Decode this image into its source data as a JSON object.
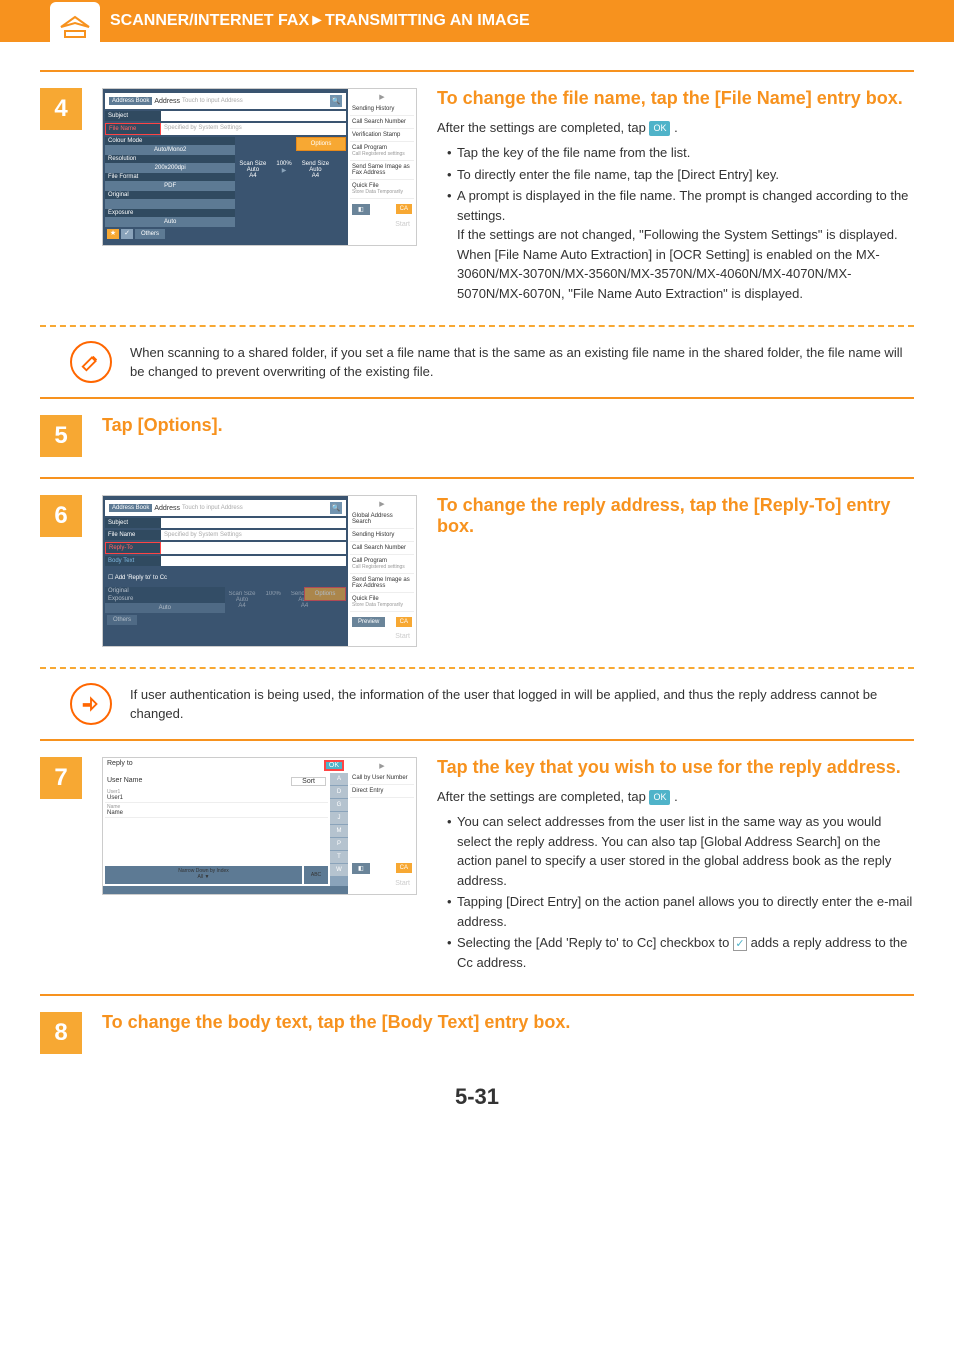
{
  "header": {
    "title": "SCANNER/INTERNET FAX►TRANSMITTING AN IMAGE"
  },
  "step4": {
    "num": "4",
    "title": "To change the file name, tap the [File Name] entry box.",
    "after": "After the settings are completed, tap ",
    "ok": "OK",
    "period": " .",
    "b1": "Tap the key of the file name from the list.",
    "b2": "To directly enter the file name, tap the [Direct Entry] key.",
    "b3_a": "A prompt is displayed in the file name. The prompt is changed according to the settings.",
    "b3_b": "If the settings are not changed, \"Following the System Settings\" is displayed.",
    "b3_c": "When [File Name Auto Extraction] in [OCR Setting] is enabled on the MX-3060N/MX-3070N/MX-3560N/MX-3570N/MX-4060N/MX-4070N/MX-5070N/MX-6070N, \"File Name Auto Extraction\" is displayed."
  },
  "note4": "When scanning to a shared folder, if you set a file name that is the same as an existing file name in the shared folder, the file name will be changed to prevent overwriting of the existing file.",
  "step5": {
    "num": "5",
    "title": "Tap [Options]."
  },
  "step6": {
    "num": "6",
    "title": "To change the reply address, tap the [Reply-To] entry box."
  },
  "note6": "If user authentication is being used, the information of the user that logged in will be applied, and thus the reply address cannot be changed.",
  "step7": {
    "num": "7",
    "title": "Tap the key that you wish to use for the reply address.",
    "after": "After the settings are completed, tap ",
    "ok": "OK",
    "period": " .",
    "b1": "You can select addresses from the user list in the same way as you would select the reply address. You can also tap [Global Address Search] on the action panel to specify a user stored in the global address book as the reply address.",
    "b2": "Tapping [Direct Entry] on the action panel allows you to directly enter the e-mail address.",
    "b3_a": "Selecting the [Add 'Reply to' to Cc] checkbox to ",
    "b3_b": " adds a reply address to the Cc address."
  },
  "step8": {
    "num": "8",
    "title": "To change the body text, tap the [Body Text] entry box."
  },
  "page_num": "5-31",
  "ss": {
    "address_book": "Address Book",
    "address": "Address",
    "touch": "Touch to input Address",
    "subject": "Subject",
    "file_name": "File Name",
    "reply_to": "Reply-To",
    "body_text": "Body Text",
    "spec": "Specified by System Settings",
    "colour_mode": "Colour Mode",
    "auto_mono": "Auto/Mono2",
    "resolution": "Resolution",
    "res_val": "200x200dpi",
    "file_format": "File Format",
    "pdf": "PDF",
    "original": "Original",
    "exposure": "Exposure",
    "auto": "Auto",
    "others": "Others",
    "options": "Options",
    "scan_size": "Scan Size",
    "send_size": "Send Size",
    "pct": "100%",
    "a4": "A4",
    "add_reply_cc": "Add 'Reply to' to Cc",
    "sending_history": "Sending History",
    "call_search": "Call Search Number",
    "verif_stamp": "Verification Stamp",
    "call_program": "Call Program",
    "call_program_sub": "Call Registered settings",
    "send_same": "Send Same Image as Fax Address",
    "quick_file": "Quick File",
    "quick_file_sub": "Store Data Temporarily",
    "global_addr": "Global Address Search",
    "ca": "CA",
    "preview": "Preview",
    "start": "Start"
  },
  "ul": {
    "reply_to": "Reply to",
    "ok": "OK",
    "user_name": "User Name",
    "sort": "Sort",
    "user1": "User1",
    "name": "Name",
    "narrow": "Narrow Down by Index",
    "all": "All",
    "abc": "ABC",
    "letters": [
      "A",
      "D",
      "G",
      "J",
      "M",
      "P",
      "T",
      "W"
    ],
    "call_user": "Call by User Number",
    "direct_entry": "Direct Entry",
    "ca": "CA",
    "start": "Start"
  }
}
